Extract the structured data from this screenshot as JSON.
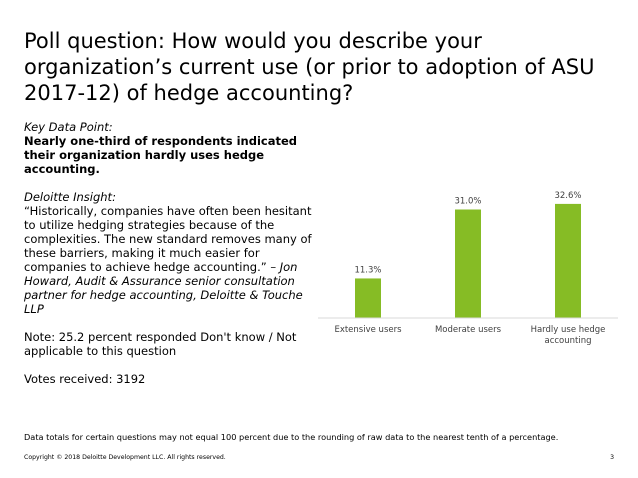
{
  "slide": {
    "title": "Poll question: How would you describe your organization’s current use (or prior to adoption of ASU 2017-12) of hedge accounting?",
    "key_data_label": "Key Data Point:",
    "key_data_text": "Nearly one-third of respondents indicated their organization hardly uses hedge accounting.",
    "insight_label": "Deloitte Insight:",
    "insight_quote": "“Historically, companies have often been hesitant to utilize hedging strategies because of the complexities. The new standard removes many of these barriers, making it much easier for companies to achieve hedge accounting.” ",
    "insight_attribution": "– Jon Howard, Audit & Assurance senior consultation partner for hedge accounting, Deloitte & Touche LLP",
    "note": "Note: 25.2 percent responded Don't know / Not applicable to this question",
    "votes": "Votes received: 3192",
    "footnote": "Data totals for certain questions may not equal 100 percent due to the rounding of raw data to the nearest tenth of a percentage.",
    "copyright": "Copyright © 2018 Deloitte Development LLC. All rights reserved.",
    "page_number": "3"
  },
  "chart_data": {
    "type": "bar",
    "categories": [
      "Extensive users",
      "Moderate users",
      "Hardly use hedge accounting"
    ],
    "values": [
      11.3,
      31.0,
      32.6
    ],
    "data_labels": [
      "11.3%",
      "31.0%",
      "32.6%"
    ],
    "ylim": [
      0,
      40
    ],
    "bar_color": "#86bc25",
    "label_color": "#404040",
    "axis_color": "#d9d9d9",
    "grid": false
  }
}
